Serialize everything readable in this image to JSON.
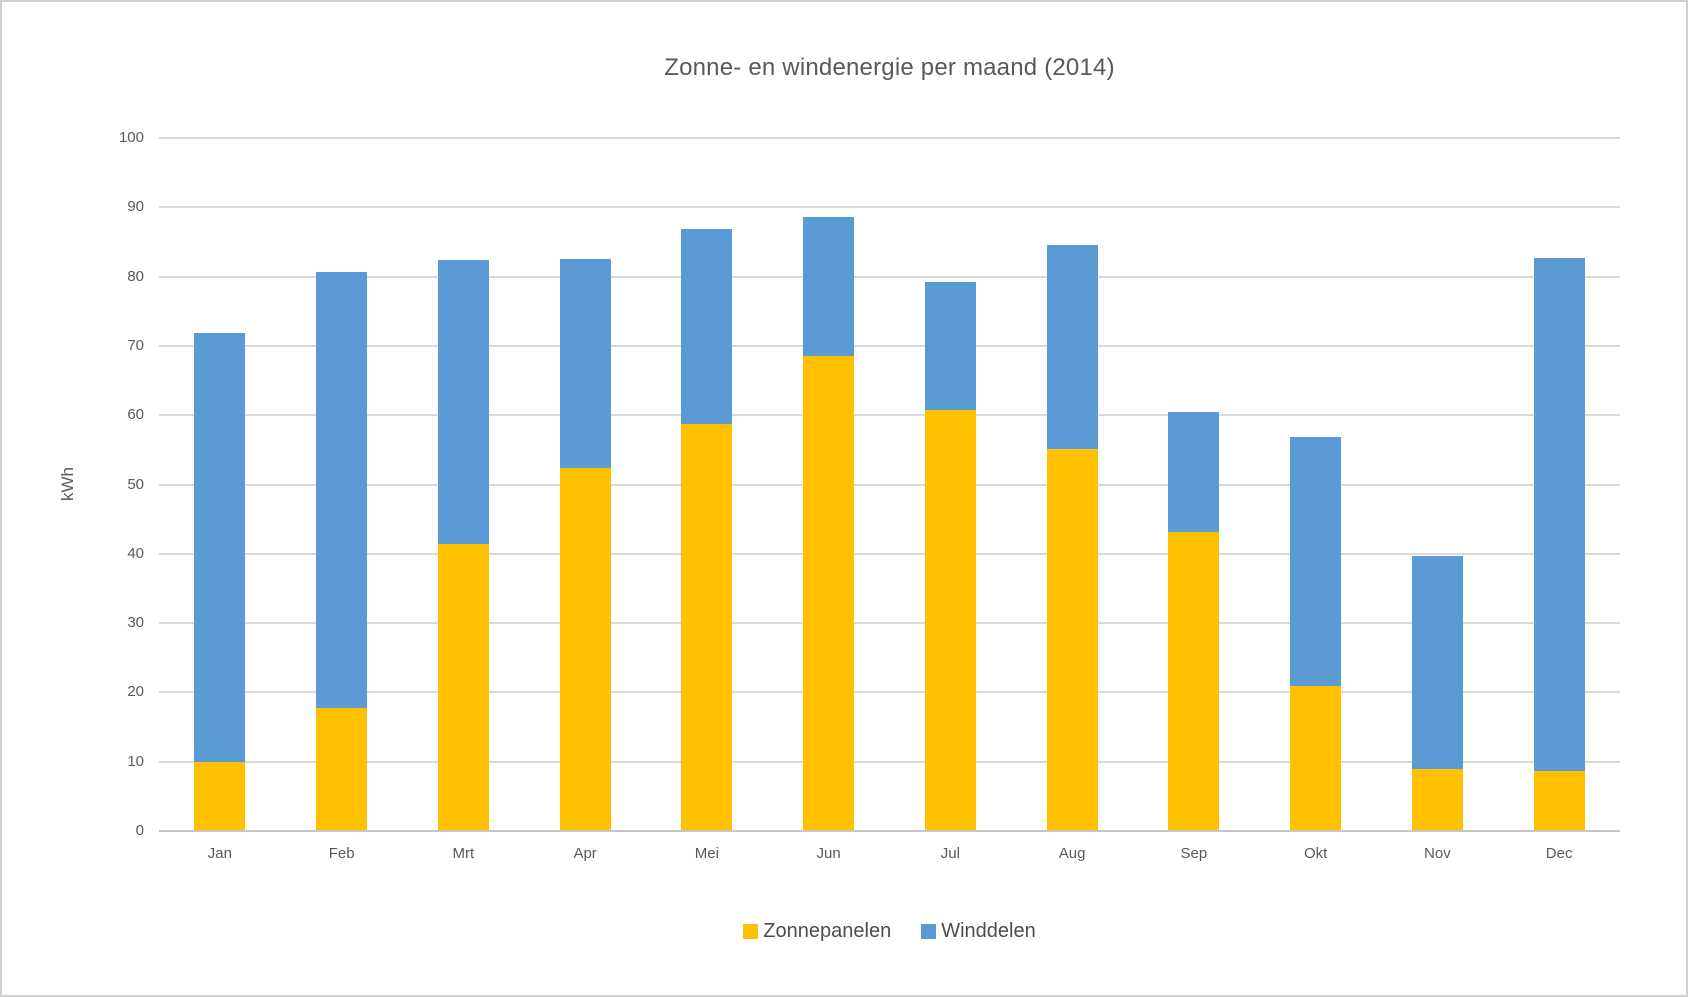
{
  "chart_data": {
    "type": "bar",
    "stacked": true,
    "title": "Zonne- en windenergie per maand (2014)",
    "ylabel": "kWh",
    "xlabel": "",
    "ylim": [
      0,
      100
    ],
    "yticks": [
      0,
      10,
      20,
      30,
      40,
      50,
      60,
      70,
      80,
      90,
      100
    ],
    "grid": "horizontal",
    "legend_position": "bottom",
    "categories": [
      "Jan",
      "Feb",
      "Mrt",
      "Apr",
      "Mei",
      "Jun",
      "Jul",
      "Aug",
      "Sep",
      "Okt",
      "Nov",
      "Dec"
    ],
    "series": [
      {
        "name": "Zonnepanelen",
        "color": "#FFC000",
        "values": [
          10.0,
          17.8,
          41.4,
          52.4,
          58.8,
          68.6,
          60.8,
          55.1,
          43.1,
          20.9,
          8.9,
          8.7
        ]
      },
      {
        "name": "Winddelen",
        "color": "#5B9BD5",
        "values": [
          61.8,
          62.8,
          41.0,
          30.2,
          28.1,
          20.0,
          18.4,
          29.4,
          17.3,
          36.0,
          30.8,
          74.0
        ]
      }
    ]
  },
  "colors": {
    "title_text": "#595959",
    "axis_text": "#595959",
    "legend_text": "#4d4d4d",
    "gridline": "#D9D9D9",
    "axis_line": "#C6C6C6",
    "background": "#FFFFFF",
    "border": "#CFCFCF"
  }
}
